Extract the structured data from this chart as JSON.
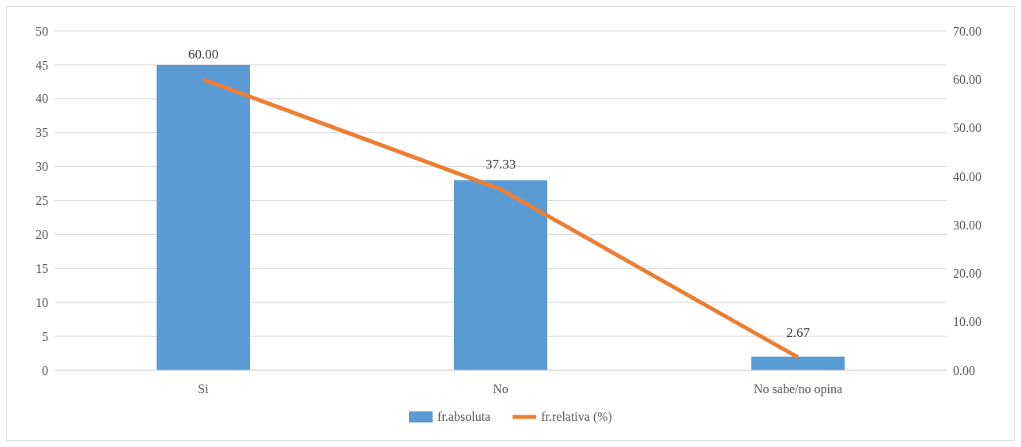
{
  "chart_data": {
    "type": "bar",
    "categories": [
      "Si",
      "No",
      "No sabe/no opina"
    ],
    "series": [
      {
        "name": "fr.absoluta",
        "color": "#5b9bd5",
        "values": [
          45,
          28,
          2
        ]
      },
      {
        "name": "fr.relativa (%)",
        "type": "line",
        "axis": "y2",
        "color": "#ed7d31",
        "values": [
          60,
          37.33,
          2.67
        ],
        "value_labels": [
          "60.00",
          "37.33",
          "2.67"
        ]
      }
    ],
    "ylim": [
      0,
      50
    ],
    "yticks": [
      0,
      5,
      10,
      15,
      20,
      25,
      30,
      35,
      40,
      45,
      50
    ],
    "y2lim": [
      0,
      70
    ],
    "y2ticks": [
      {
        "value": 0,
        "label": "0.00"
      },
      {
        "value": 10,
        "label": "10.00"
      },
      {
        "value": 20,
        "label": "20.00"
      },
      {
        "value": 30,
        "label": "30.00"
      },
      {
        "value": 40,
        "label": "40.00"
      },
      {
        "value": 50,
        "label": "50.00"
      },
      {
        "value": 60,
        "label": "60.00"
      },
      {
        "value": 70,
        "label": "70.00"
      }
    ],
    "grid": "y",
    "legend": "bottom",
    "line_style": "solid"
  }
}
